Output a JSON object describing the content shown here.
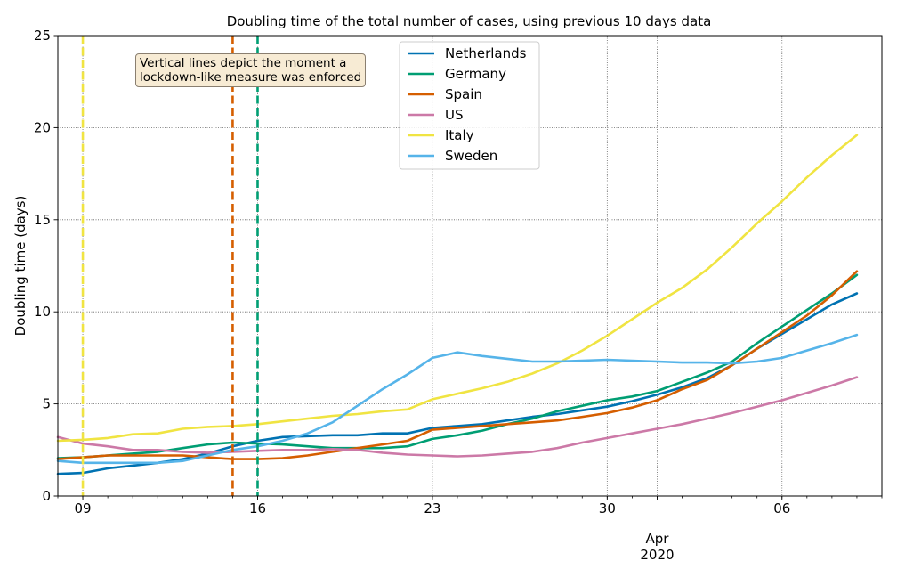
{
  "chart_data": {
    "type": "line",
    "title": "Doubling time of the total number of cases, using previous 10 days data",
    "xlabel": "",
    "ylabel": "Doubling time (days)",
    "ylim": [
      0,
      25
    ],
    "xlim": [
      "2020-03-08",
      "2020-04-10"
    ],
    "grid": "dotted, at major ticks",
    "legend_position": "upper center",
    "x_tick_labels": [
      "09",
      "16",
      "23",
      "30",
      "Apr\n2020",
      "06"
    ],
    "y_tick_labels": [
      "0",
      "5",
      "10",
      "15",
      "20",
      "25"
    ],
    "annotation": [
      "Vertical lines depict the moment a",
      "lockdown-like measure was enforced"
    ],
    "vertical_lines": [
      {
        "date": "2020-03-09",
        "color": "#f0e442"
      },
      {
        "date": "2020-03-15",
        "color": "#d55e00"
      },
      {
        "date": "2020-03-16",
        "color": "#009e73"
      }
    ],
    "x": [
      "2020-03-08",
      "2020-03-09",
      "2020-03-10",
      "2020-03-11",
      "2020-03-12",
      "2020-03-13",
      "2020-03-14",
      "2020-03-15",
      "2020-03-16",
      "2020-03-17",
      "2020-03-18",
      "2020-03-19",
      "2020-03-20",
      "2020-03-21",
      "2020-03-22",
      "2020-03-23",
      "2020-03-24",
      "2020-03-25",
      "2020-03-26",
      "2020-03-27",
      "2020-03-28",
      "2020-03-29",
      "2020-03-30",
      "2020-03-31",
      "2020-04-01",
      "2020-04-02",
      "2020-04-03",
      "2020-04-04",
      "2020-04-05",
      "2020-04-06",
      "2020-04-07",
      "2020-04-08",
      "2020-04-09"
    ],
    "series": [
      {
        "name": "Netherlands",
        "color": "#0072b2",
        "values": [
          1.2,
          1.25,
          1.5,
          1.65,
          1.8,
          2.0,
          2.3,
          2.7,
          3.0,
          3.2,
          3.25,
          3.3,
          3.3,
          3.4,
          3.4,
          3.7,
          3.8,
          3.9,
          4.1,
          4.3,
          4.45,
          4.65,
          4.85,
          5.15,
          5.5,
          5.9,
          6.4,
          7.1,
          8.0,
          8.8,
          9.6,
          10.4,
          11.0
        ]
      },
      {
        "name": "Germany",
        "color": "#009e73",
        "values": [
          2.05,
          2.1,
          2.2,
          2.3,
          2.4,
          2.6,
          2.8,
          2.9,
          2.85,
          2.8,
          2.7,
          2.6,
          2.6,
          2.6,
          2.7,
          3.1,
          3.3,
          3.55,
          3.9,
          4.2,
          4.6,
          4.9,
          5.2,
          5.4,
          5.7,
          6.2,
          6.7,
          7.3,
          8.3,
          9.2,
          10.1,
          11.0,
          12.0
        ]
      },
      {
        "name": "Spain",
        "color": "#d55e00",
        "values": [
          2.0,
          2.1,
          2.2,
          2.2,
          2.2,
          2.2,
          2.1,
          2.0,
          2.0,
          2.05,
          2.2,
          2.4,
          2.6,
          2.8,
          3.0,
          3.6,
          3.7,
          3.8,
          3.9,
          4.0,
          4.1,
          4.3,
          4.5,
          4.8,
          5.2,
          5.8,
          6.3,
          7.1,
          8.0,
          8.9,
          9.8,
          10.9,
          12.2
        ]
      },
      {
        "name": "US",
        "color": "#cc79a7",
        "values": [
          3.2,
          2.85,
          2.7,
          2.5,
          2.5,
          2.4,
          2.35,
          2.4,
          2.45,
          2.5,
          2.5,
          2.55,
          2.5,
          2.35,
          2.25,
          2.2,
          2.15,
          2.2,
          2.3,
          2.4,
          2.6,
          2.9,
          3.15,
          3.4,
          3.65,
          3.9,
          4.2,
          4.5,
          4.85,
          5.2,
          5.6,
          6.0,
          6.45
        ]
      },
      {
        "name": "Italy",
        "color": "#f0e442",
        "values": [
          3.0,
          3.05,
          3.15,
          3.35,
          3.4,
          3.65,
          3.75,
          3.8,
          3.9,
          4.05,
          4.2,
          4.35,
          4.45,
          4.6,
          4.7,
          5.25,
          5.55,
          5.85,
          6.2,
          6.65,
          7.2,
          7.9,
          8.7,
          9.6,
          10.5,
          11.3,
          12.3,
          13.5,
          14.8,
          16.0,
          17.3,
          18.5,
          19.6
        ]
      },
      {
        "name": "Sweden",
        "color": "#56b4e9",
        "values": [
          1.9,
          1.8,
          1.8,
          1.8,
          1.8,
          1.9,
          2.2,
          2.5,
          2.7,
          3.0,
          3.4,
          4.0,
          4.9,
          5.8,
          6.6,
          7.5,
          7.8,
          7.6,
          7.45,
          7.3,
          7.3,
          7.35,
          7.4,
          7.35,
          7.3,
          7.25,
          7.25,
          7.2,
          7.3,
          7.5,
          7.9,
          8.3,
          8.75
        ]
      }
    ]
  }
}
